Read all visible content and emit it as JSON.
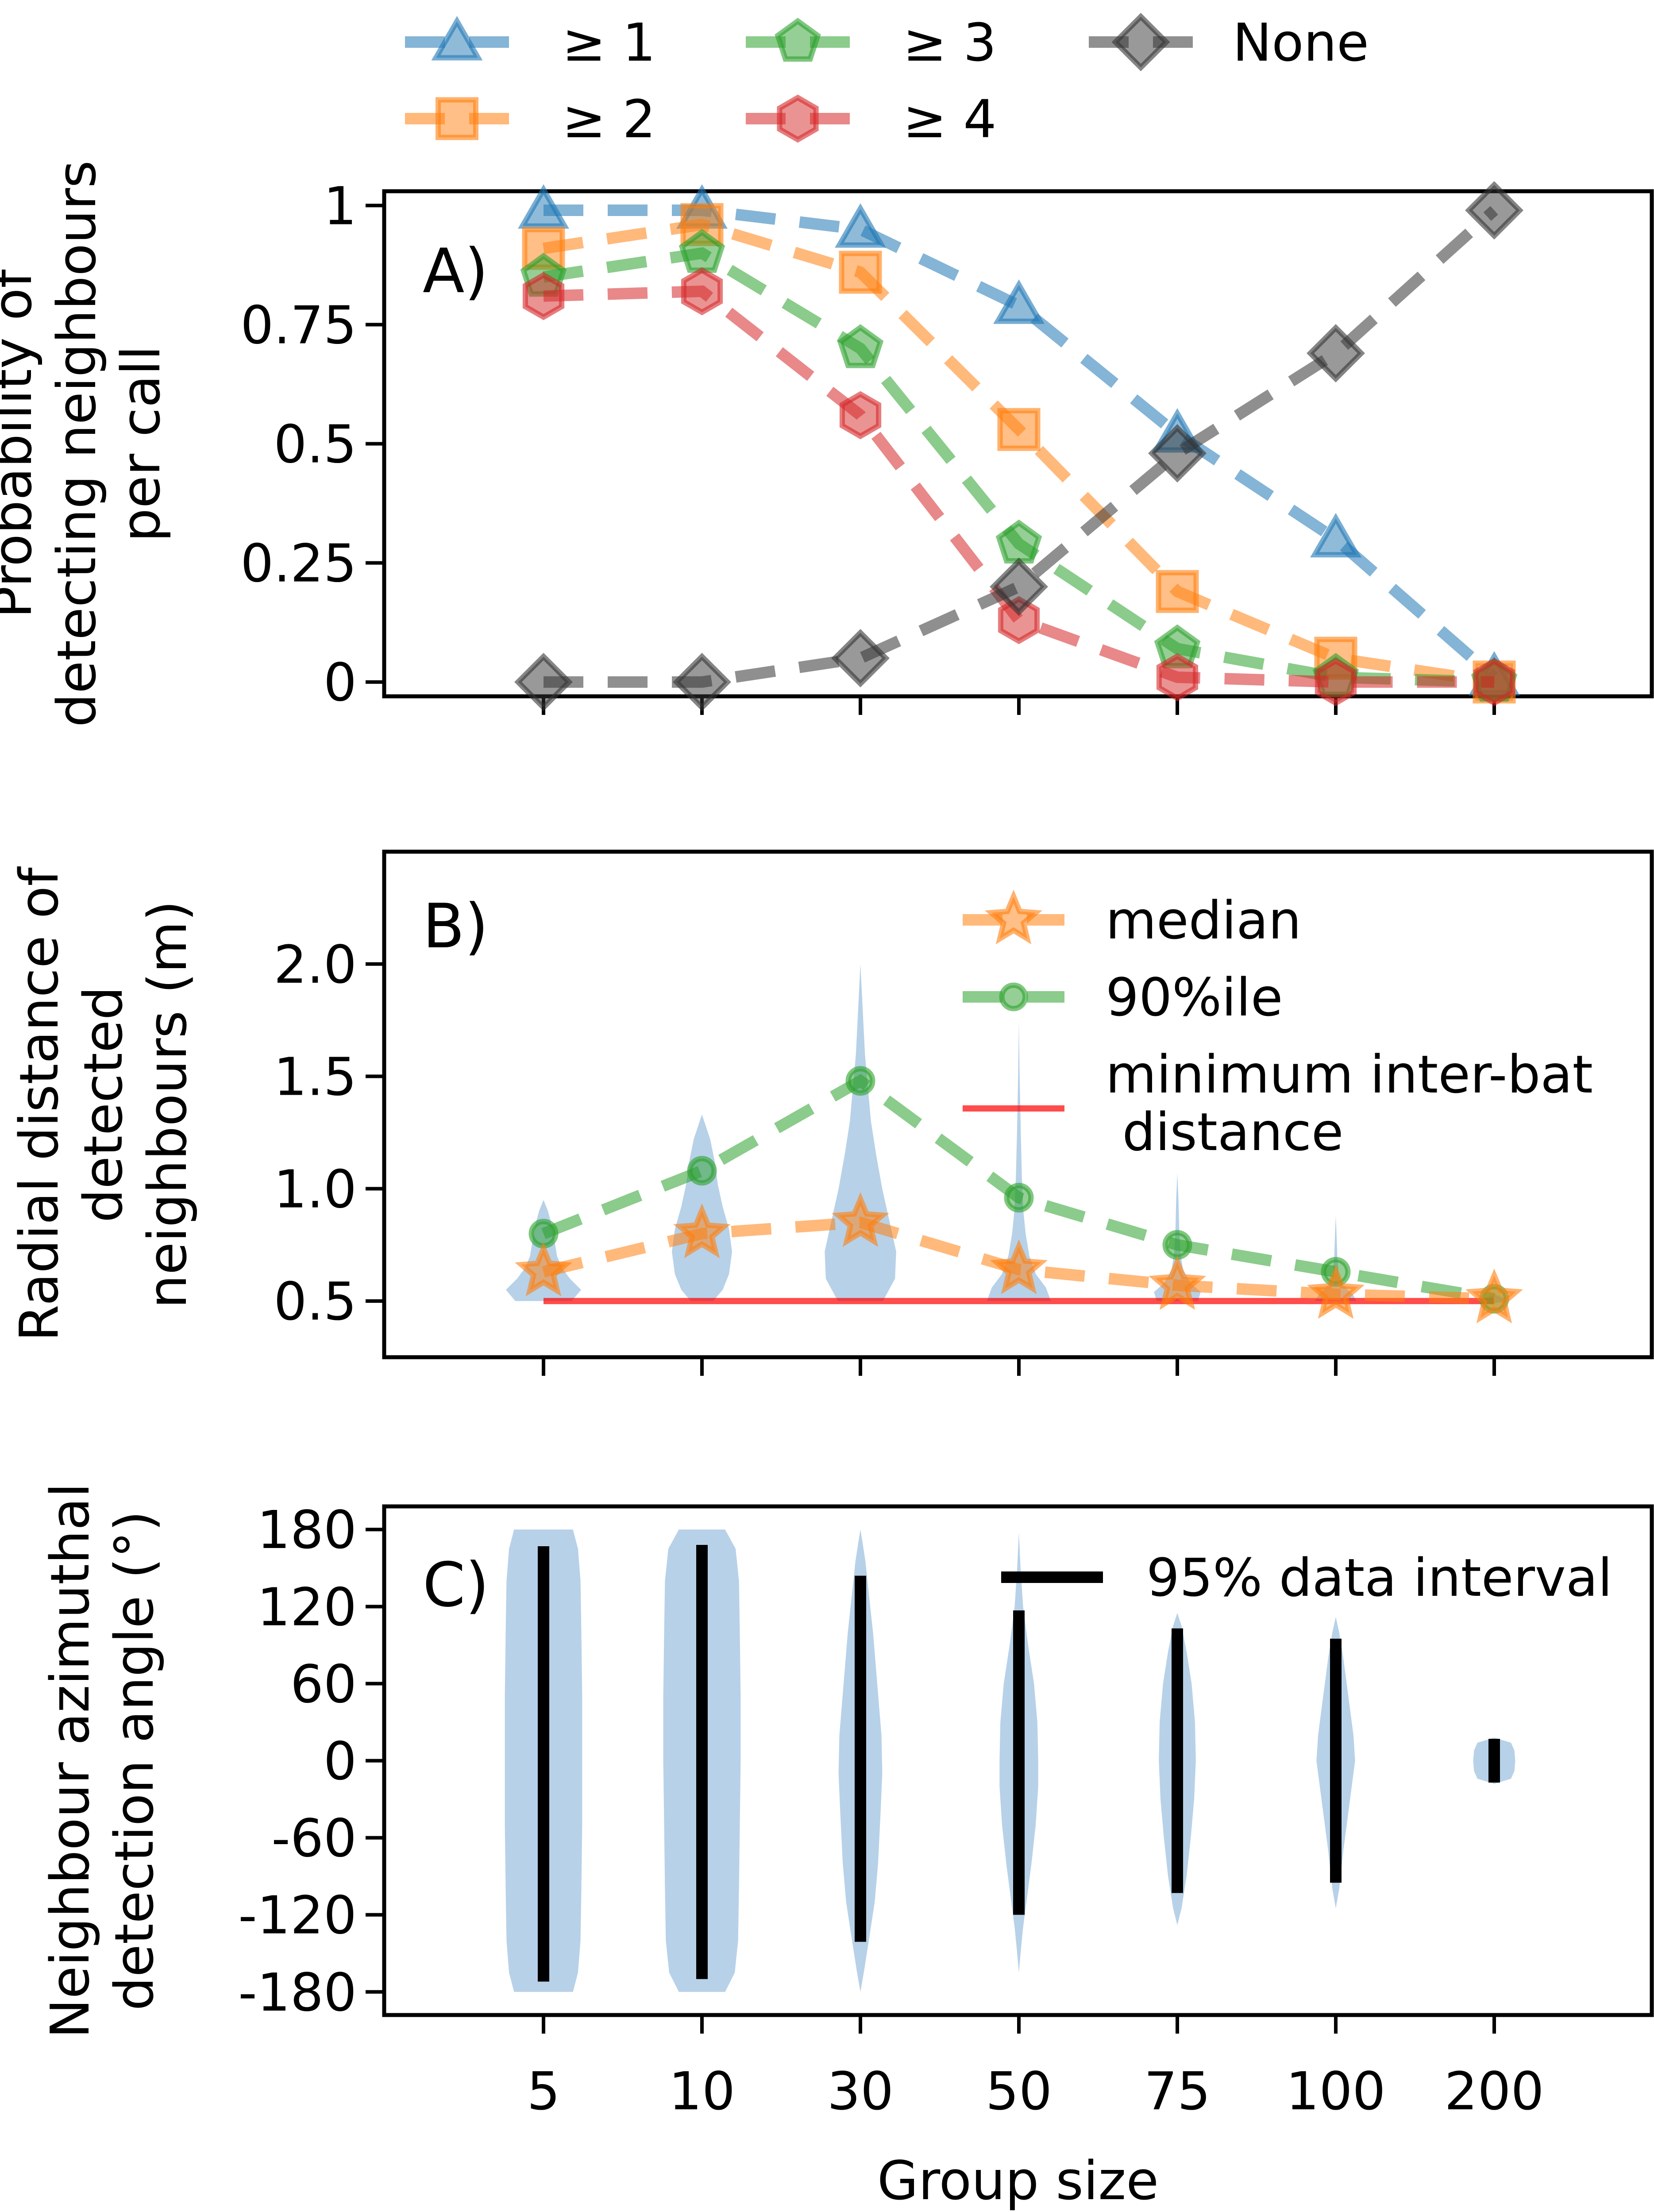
{
  "figure": {
    "xlabel": "Group size",
    "x_categories": [
      "5",
      "10",
      "30",
      "50",
      "75",
      "100",
      "200"
    ]
  },
  "top_legend": {
    "entries": [
      {
        "label": "≥ 1",
        "series": "ge1"
      },
      {
        "label": "≥ 2",
        "series": "ge2"
      },
      {
        "label": "≥ 3",
        "series": "ge3"
      },
      {
        "label": "≥ 4",
        "series": "ge4"
      },
      {
        "label": "None",
        "series": "none"
      }
    ]
  },
  "chart_data": [
    {
      "panel": "A",
      "panel_label": "A)",
      "type": "line",
      "ylabel_lines": [
        "Probability of",
        "detecting neighbours",
        "per call"
      ],
      "categories": [
        "5",
        "10",
        "30",
        "50",
        "75",
        "100",
        "200"
      ],
      "ylim": [
        -0.03,
        1.03
      ],
      "yticks": [
        0,
        0.25,
        0.5,
        0.75,
        1
      ],
      "ytick_labels": [
        "0",
        "0.25",
        "0.5",
        "0.75",
        "1"
      ],
      "legend_position": "above-figure",
      "series": [
        {
          "name": "≥ 1",
          "key": "ge1",
          "color": "#1f77b4",
          "marker": "triangle",
          "values": [
            0.99,
            0.99,
            0.95,
            0.79,
            0.52,
            0.3,
            0.01
          ]
        },
        {
          "name": "≥ 2",
          "key": "ge2",
          "color": "#ff7f0e",
          "marker": "square",
          "values": [
            0.91,
            0.96,
            0.86,
            0.53,
            0.19,
            0.05,
            0.0
          ]
        },
        {
          "name": "≥ 3",
          "key": "ge3",
          "color": "#2ca02c",
          "marker": "pentagon",
          "values": [
            0.85,
            0.9,
            0.7,
            0.29,
            0.07,
            0.01,
            0.0
          ]
        },
        {
          "name": "≥ 4",
          "key": "ge4",
          "color": "#d62728",
          "marker": "hexagon",
          "values": [
            0.81,
            0.82,
            0.56,
            0.13,
            0.01,
            0.0,
            0.0
          ]
        },
        {
          "name": "None",
          "key": "none",
          "color": "#333333",
          "marker": "diamond",
          "values": [
            0.0,
            0.0,
            0.05,
            0.2,
            0.48,
            0.69,
            0.99
          ]
        }
      ]
    },
    {
      "panel": "B",
      "panel_label": "B)",
      "type": "violin",
      "ylabel_lines": [
        "Radial distance of",
        "detected",
        "neighbours (m)"
      ],
      "categories": [
        "5",
        "10",
        "30",
        "50",
        "75",
        "100",
        "200"
      ],
      "ylim": [
        0.25,
        2.5
      ],
      "yticks": [
        0.5,
        1.0,
        1.5,
        2.0
      ],
      "ytick_labels": [
        "0.5",
        "1.0",
        "1.5",
        "2.0"
      ],
      "violin_color": "#aac9e4",
      "violins": [
        {
          "min": 0.5,
          "max": 0.95,
          "profile": [
            [
              0.5,
              0.75
            ],
            [
              0.55,
              1.0
            ],
            [
              0.6,
              0.7
            ],
            [
              0.65,
              0.48
            ],
            [
              0.7,
              0.36
            ],
            [
              0.78,
              0.28
            ],
            [
              0.85,
              0.2
            ],
            [
              0.9,
              0.12
            ],
            [
              0.95,
              0.0
            ]
          ]
        },
        {
          "min": 0.5,
          "max": 1.33,
          "profile": [
            [
              0.5,
              0.3
            ],
            [
              0.55,
              0.55
            ],
            [
              0.62,
              0.72
            ],
            [
              0.72,
              0.8
            ],
            [
              0.82,
              0.72
            ],
            [
              0.92,
              0.55
            ],
            [
              1.02,
              0.42
            ],
            [
              1.12,
              0.34
            ],
            [
              1.22,
              0.22
            ],
            [
              1.33,
              0.0
            ]
          ]
        },
        {
          "min": 0.5,
          "max": 2.0,
          "profile": [
            [
              0.5,
              0.6
            ],
            [
              0.6,
              0.92
            ],
            [
              0.72,
              0.95
            ],
            [
              0.85,
              0.78
            ],
            [
              1.0,
              0.58
            ],
            [
              1.15,
              0.42
            ],
            [
              1.3,
              0.28
            ],
            [
              1.45,
              0.2
            ],
            [
              1.6,
              0.12
            ],
            [
              1.8,
              0.06
            ],
            [
              2.0,
              0.0
            ]
          ]
        },
        {
          "min": 0.5,
          "max": 1.75,
          "profile": [
            [
              0.5,
              0.85
            ],
            [
              0.56,
              0.72
            ],
            [
              0.62,
              0.45
            ],
            [
              0.7,
              0.28
            ],
            [
              0.8,
              0.18
            ],
            [
              0.9,
              0.12
            ],
            [
              1.05,
              0.08
            ],
            [
              1.25,
              0.05
            ],
            [
              1.5,
              0.02
            ],
            [
              1.75,
              0.0
            ]
          ]
        },
        {
          "min": 0.5,
          "max": 1.07,
          "profile": [
            [
              0.5,
              0.55
            ],
            [
              0.54,
              0.62
            ],
            [
              0.58,
              0.35
            ],
            [
              0.64,
              0.15
            ],
            [
              0.72,
              0.08
            ],
            [
              0.82,
              0.05
            ],
            [
              0.95,
              0.03
            ],
            [
              1.07,
              0.0
            ]
          ]
        },
        {
          "min": 0.5,
          "max": 0.88,
          "profile": [
            [
              0.5,
              0.55
            ],
            [
              0.53,
              0.45
            ],
            [
              0.57,
              0.2
            ],
            [
              0.62,
              0.08
            ],
            [
              0.7,
              0.04
            ],
            [
              0.8,
              0.02
            ],
            [
              0.88,
              0.0
            ]
          ]
        },
        {
          "min": 0.5,
          "max": 0.52,
          "profile": [
            [
              0.49,
              0.0
            ],
            [
              0.5,
              0.3
            ],
            [
              0.51,
              0.3
            ],
            [
              0.53,
              0.0
            ]
          ]
        }
      ],
      "series": [
        {
          "name": "median",
          "key": "median",
          "color": "#ff7f0e",
          "marker": "star",
          "values": [
            0.63,
            0.8,
            0.85,
            0.64,
            0.57,
            0.53,
            0.51
          ]
        },
        {
          "name": "90%ile",
          "key": "p90",
          "color": "#2ca02c",
          "marker": "circle",
          "values": [
            0.8,
            1.08,
            1.48,
            0.96,
            0.75,
            0.63,
            0.51
          ]
        }
      ],
      "hline": {
        "name": "minimum inter-bat distance",
        "legend_lines": [
          "minimum inter-bat",
          " distance"
        ],
        "value": 0.5,
        "color": "#ff0000",
        "from_category": "5",
        "to_category": "200"
      },
      "legend_position": "upper right"
    },
    {
      "panel": "C",
      "panel_label": "C)",
      "type": "violin",
      "ylabel_lines": [
        "Neighbour azimuthal",
        "detection angle (°)"
      ],
      "categories": [
        "5",
        "10",
        "30",
        "50",
        "75",
        "100",
        "200"
      ],
      "ylim": [
        -198,
        198
      ],
      "yticks": [
        -180,
        -120,
        -60,
        0,
        60,
        120,
        180
      ],
      "ytick_labels": [
        "-180",
        "-120",
        "-60",
        "0",
        "60",
        "120",
        "180"
      ],
      "violin_color": "#aac9e4",
      "violins": [
        {
          "min": -180,
          "max": 180,
          "profile": [
            [
              -180,
              0.7
            ],
            [
              -165,
              0.82
            ],
            [
              -140,
              0.88
            ],
            [
              -100,
              0.9
            ],
            [
              -50,
              0.92
            ],
            [
              0,
              0.92
            ],
            [
              50,
              0.92
            ],
            [
              100,
              0.9
            ],
            [
              140,
              0.88
            ],
            [
              165,
              0.82
            ],
            [
              180,
              0.7
            ]
          ]
        },
        {
          "min": -180,
          "max": 180,
          "profile": [
            [
              -180,
              0.55
            ],
            [
              -165,
              0.78
            ],
            [
              -140,
              0.86
            ],
            [
              -100,
              0.88
            ],
            [
              -50,
              0.9
            ],
            [
              0,
              0.92
            ],
            [
              50,
              0.92
            ],
            [
              100,
              0.9
            ],
            [
              140,
              0.88
            ],
            [
              165,
              0.8
            ],
            [
              180,
              0.55
            ]
          ]
        },
        {
          "min": -180,
          "max": 180,
          "profile": [
            [
              -180,
              0.0
            ],
            [
              -165,
              0.08
            ],
            [
              -140,
              0.2
            ],
            [
              -110,
              0.34
            ],
            [
              -80,
              0.42
            ],
            [
              -40,
              0.48
            ],
            [
              -10,
              0.52
            ],
            [
              20,
              0.5
            ],
            [
              60,
              0.4
            ],
            [
              100,
              0.3
            ],
            [
              130,
              0.2
            ],
            [
              155,
              0.12
            ],
            [
              170,
              0.05
            ],
            [
              180,
              0.0
            ]
          ]
        },
        {
          "min": -165,
          "max": 178,
          "profile": [
            [
              -165,
              0.0
            ],
            [
              -150,
              0.04
            ],
            [
              -130,
              0.1
            ],
            [
              -110,
              0.18
            ],
            [
              -80,
              0.3
            ],
            [
              -50,
              0.4
            ],
            [
              -20,
              0.46
            ],
            [
              0,
              0.46
            ],
            [
              30,
              0.44
            ],
            [
              60,
              0.36
            ],
            [
              90,
              0.22
            ],
            [
              120,
              0.1
            ],
            [
              150,
              0.04
            ],
            [
              178,
              0.0
            ]
          ]
        },
        {
          "min": -128,
          "max": 115,
          "profile": [
            [
              -128,
              0.0
            ],
            [
              -115,
              0.1
            ],
            [
              -90,
              0.22
            ],
            [
              -60,
              0.32
            ],
            [
              -30,
              0.4
            ],
            [
              0,
              0.44
            ],
            [
              30,
              0.42
            ],
            [
              60,
              0.34
            ],
            [
              85,
              0.22
            ],
            [
              105,
              0.1
            ],
            [
              115,
              0.0
            ]
          ]
        },
        {
          "min": -115,
          "max": 112,
          "profile": [
            [
              -115,
              0.0
            ],
            [
              -100,
              0.08
            ],
            [
              -70,
              0.18
            ],
            [
              -40,
              0.3
            ],
            [
              -15,
              0.4
            ],
            [
              0,
              0.46
            ],
            [
              20,
              0.42
            ],
            [
              50,
              0.3
            ],
            [
              80,
              0.18
            ],
            [
              100,
              0.08
            ],
            [
              112,
              0.0
            ]
          ]
        },
        {
          "min": -18,
          "max": 18,
          "profile": [
            [
              -18,
              0.0
            ],
            [
              -14,
              0.4
            ],
            [
              -8,
              0.48
            ],
            [
              0,
              0.5
            ],
            [
              8,
              0.48
            ],
            [
              14,
              0.4
            ],
            [
              18,
              0.0
            ]
          ]
        }
      ],
      "intervals": [
        {
          "lo": -172,
          "hi": 167
        },
        {
          "lo": -170,
          "hi": 168
        },
        {
          "lo": -141,
          "hi": 144
        },
        {
          "lo": -120,
          "hi": 117
        },
        {
          "lo": -103,
          "hi": 103
        },
        {
          "lo": -95,
          "hi": 95
        },
        {
          "lo": -17,
          "hi": 17
        }
      ],
      "interval_legend": "95% data interval",
      "legend_position": "upper right"
    }
  ]
}
